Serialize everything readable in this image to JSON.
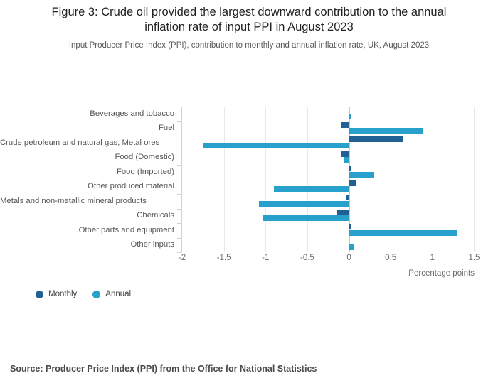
{
  "page": {
    "source": "Source: Producer Price Index (PPI) from the Office for National Statistics",
    "background": "#ffffff"
  },
  "chart_data": {
    "type": "bar",
    "orientation": "horizontal",
    "title": "Figure 3: Crude oil provided the largest downward contribution to the annual inflation rate of input PPI in August 2023",
    "subtitle": "Input Producer Price Index (PPI), contribution to monthly and annual inflation rate, UK, August 2023",
    "xlabel": "Percentage points",
    "categories": [
      "Beverages and tobacco",
      "Fuel",
      "Crude petroleum and natural gas; Metal ores",
      "Food (Domestic)",
      "Food (Imported)",
      "Other produced material",
      "Metals and non-metallic mineral products",
      "Chemicals",
      "Other parts and equipment",
      "Other inputs"
    ],
    "series": [
      {
        "name": "Monthly",
        "color": "#206095",
        "values": [
          0,
          -0.1,
          0.65,
          -0.1,
          0.02,
          0.09,
          -0.04,
          -0.14,
          0.02,
          0
        ]
      },
      {
        "name": "Annual",
        "color": "#27a0cc",
        "values": [
          0.03,
          0.88,
          -1.75,
          -0.06,
          0.3,
          -0.9,
          -1.08,
          -1.03,
          1.3,
          0.06
        ]
      }
    ],
    "xlim": [
      -2,
      1.6667
    ],
    "xticks": [
      -2,
      -1.5,
      -1,
      -0.5,
      0,
      0.5,
      1,
      1.5
    ],
    "grid": true,
    "legend_position": "bottom-left",
    "axis_colors": {
      "grid": "#e9e9e9",
      "zero_line": "#c6c6c6",
      "axis_line": "#ccd4e4"
    }
  }
}
